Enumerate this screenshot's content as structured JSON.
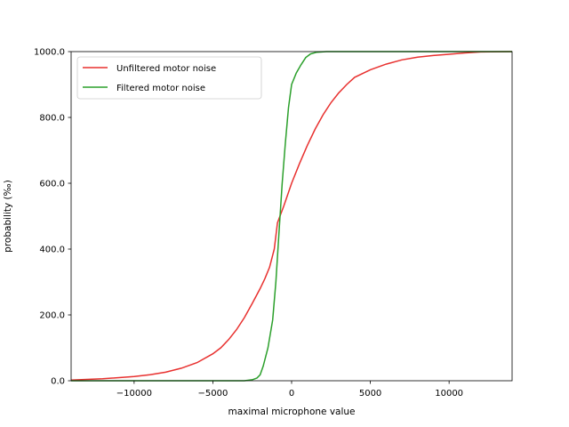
{
  "chart_data": {
    "type": "line",
    "title": "",
    "xlabel": "maximal microphone value",
    "ylabel": "probability (‰)",
    "xlim": [
      -14000,
      14000
    ],
    "ylim": [
      0,
      1000
    ],
    "xticks": [
      -10000,
      -5000,
      0,
      5000,
      10000
    ],
    "xtick_labels": [
      "−10000",
      "−5000",
      "0",
      "5000",
      "10000"
    ],
    "yticks": [
      0,
      200,
      400,
      600,
      800,
      1000
    ],
    "ytick_labels": [
      "0.0",
      "200.0",
      "400.0",
      "600.0",
      "800.0",
      "1000.0"
    ],
    "grid": false,
    "legend_position": "top-left",
    "series": [
      {
        "name": "Unfiltered motor noise",
        "color": "#e8312f",
        "points": [
          [
            -14000,
            2
          ],
          [
            -12000,
            6
          ],
          [
            -10000,
            13
          ],
          [
            -9000,
            18
          ],
          [
            -8000,
            26
          ],
          [
            -7000,
            38
          ],
          [
            -6000,
            55
          ],
          [
            -5000,
            82
          ],
          [
            -4500,
            100
          ],
          [
            -4000,
            125
          ],
          [
            -3500,
            155
          ],
          [
            -3000,
            192
          ],
          [
            -2500,
            235
          ],
          [
            -2000,
            280
          ],
          [
            -1700,
            310
          ],
          [
            -1400,
            345
          ],
          [
            -1100,
            400
          ],
          [
            -900,
            480
          ],
          [
            -500,
            530
          ],
          [
            0,
            600
          ],
          [
            500,
            660
          ],
          [
            1000,
            715
          ],
          [
            1500,
            765
          ],
          [
            2000,
            808
          ],
          [
            2500,
            845
          ],
          [
            3000,
            875
          ],
          [
            3500,
            900
          ],
          [
            4000,
            922
          ],
          [
            5000,
            945
          ],
          [
            6000,
            962
          ],
          [
            7000,
            975
          ],
          [
            8000,
            983
          ],
          [
            9000,
            988
          ],
          [
            10000,
            992
          ],
          [
            11000,
            996
          ],
          [
            12000,
            999
          ],
          [
            14000,
            1000
          ]
        ]
      },
      {
        "name": "Filtered motor noise",
        "color": "#2ca02c",
        "points": [
          [
            -14000,
            0
          ],
          [
            -3000,
            0
          ],
          [
            -2500,
            3
          ],
          [
            -2200,
            8
          ],
          [
            -2000,
            18
          ],
          [
            -1800,
            45
          ],
          [
            -1500,
            100
          ],
          [
            -1200,
            185
          ],
          [
            -1000,
            300
          ],
          [
            -800,
            450
          ],
          [
            -600,
            600
          ],
          [
            -400,
            720
          ],
          [
            -200,
            830
          ],
          [
            0,
            900
          ],
          [
            300,
            935
          ],
          [
            600,
            960
          ],
          [
            900,
            982
          ],
          [
            1200,
            993
          ],
          [
            1600,
            998
          ],
          [
            2200,
            1000
          ],
          [
            14000,
            1000
          ]
        ]
      }
    ]
  }
}
